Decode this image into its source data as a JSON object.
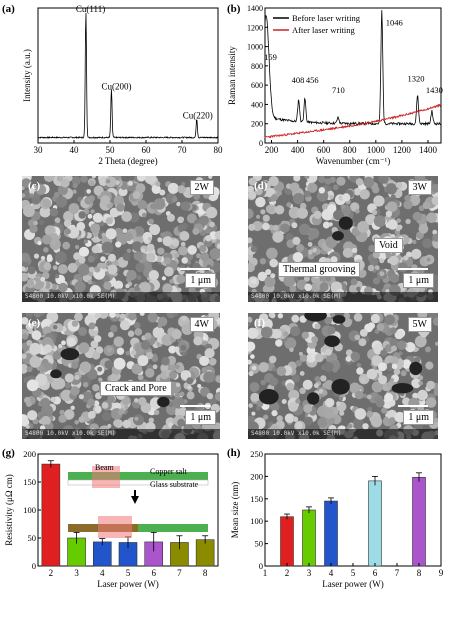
{
  "panels": {
    "a": "(a)",
    "b": "(b)",
    "c": "(c)",
    "d": "(d)",
    "e": "(e)",
    "f": "(f)",
    "g": "(g)",
    "h": "(h)"
  },
  "sem": {
    "c": {
      "power": "2W",
      "scale": "1 μm",
      "footer": "S4800 10.0kV x10.0k SE(M)"
    },
    "d": {
      "power": "3W",
      "scale": "1 μm",
      "footer": "S4800 10.0kV x10.0k SE(M)",
      "annot1": "Thermal grooving",
      "annot2": "Void"
    },
    "e": {
      "power": "4W",
      "scale": "1 μm",
      "footer": "S4800 10.0kV x10.0k SE(M)",
      "annot1": "Crack and Pore"
    },
    "f": {
      "power": "5W",
      "scale": "1 μm",
      "footer": "S4800 10.0kV x10.0k SE(M)"
    }
  },
  "colors": {
    "axis": "#000000",
    "sem_bg": "#6e6e6e",
    "before": "#000000",
    "after": "#cc2222",
    "bar_red": "#e02020",
    "bar_green": "#66cc00",
    "bar_blue": "#2255cc",
    "bar_olive": "#8b8b00",
    "bar_cyan": "#9ddce6",
    "bar_purple": "#aa55cc"
  },
  "chart_data": [
    {
      "id": "a",
      "type": "line",
      "xlabel": "2 Theta (degree)",
      "ylabel": "Intensity (a.u.)",
      "xlim": [
        30,
        80
      ],
      "xticks": [
        "30",
        "40",
        "50",
        "60",
        "70",
        "80"
      ],
      "peaks": [
        {
          "x": 43.3,
          "height": 1.0,
          "label": "Cu(111)"
        },
        {
          "x": 50.4,
          "height": 0.38,
          "label": "Cu(200)"
        },
        {
          "x": 74.1,
          "height": 0.15,
          "label": "Cu(220)"
        }
      ]
    },
    {
      "id": "b",
      "type": "line",
      "xlabel": "Wavenumber (cm⁻¹)",
      "ylabel": "Raman intensity",
      "xlim": [
        150,
        1500
      ],
      "ylim": [
        0,
        1400
      ],
      "xticks": [
        "200",
        "400",
        "600",
        "800",
        "1000",
        "1200",
        "1400"
      ],
      "yticks": [
        "0",
        "200",
        "400",
        "600",
        "800",
        "1000",
        "1200",
        "1400"
      ],
      "series": [
        {
          "name": "Before laser writing"
        },
        {
          "name": "After laser writing"
        }
      ],
      "before_peaks": [
        {
          "x": 159,
          "y": 1250
        },
        {
          "x": 408,
          "y": 430
        },
        {
          "x": 456,
          "y": 440
        },
        {
          "x": 710,
          "y": 260
        },
        {
          "x": 1046,
          "y": 1370
        },
        {
          "x": 1320,
          "y": 500
        },
        {
          "x": 1430,
          "y": 330
        }
      ],
      "annotations": [
        "159",
        "408",
        "456",
        "710",
        "1046",
        "1320",
        "1430"
      ]
    },
    {
      "id": "g",
      "type": "bar",
      "xlabel": "Laser power (W)",
      "ylabel": "Resistivity (μΩ cm)",
      "ylim": [
        0,
        200
      ],
      "yticks": [
        "0",
        "50",
        "100",
        "150",
        "200"
      ],
      "categories": [
        "2",
        "3",
        "4",
        "5",
        "6",
        "7",
        "8"
      ],
      "values": [
        182,
        50,
        43,
        42,
        43,
        42,
        47
      ],
      "errors": [
        6,
        10,
        6,
        10,
        17,
        12,
        7
      ],
      "inset": {
        "beam": "Beam",
        "copper": "Copper salt",
        "glass": "Glass substrate"
      }
    },
    {
      "id": "h",
      "type": "bar",
      "xlabel": "Laser power (W)",
      "ylabel": "Mean size (nm)",
      "ylim": [
        0,
        250
      ],
      "xlim": [
        1,
        9
      ],
      "yticks": [
        "0",
        "50",
        "100",
        "150",
        "200",
        "250"
      ],
      "xticks": [
        "1",
        "2",
        "3",
        "4",
        "5",
        "6",
        "7",
        "8",
        "9"
      ],
      "x": [
        2,
        3,
        4,
        6,
        8
      ],
      "values": [
        110,
        125,
        145,
        190,
        198
      ],
      "errors": [
        6,
        7,
        7,
        10,
        10
      ]
    }
  ]
}
